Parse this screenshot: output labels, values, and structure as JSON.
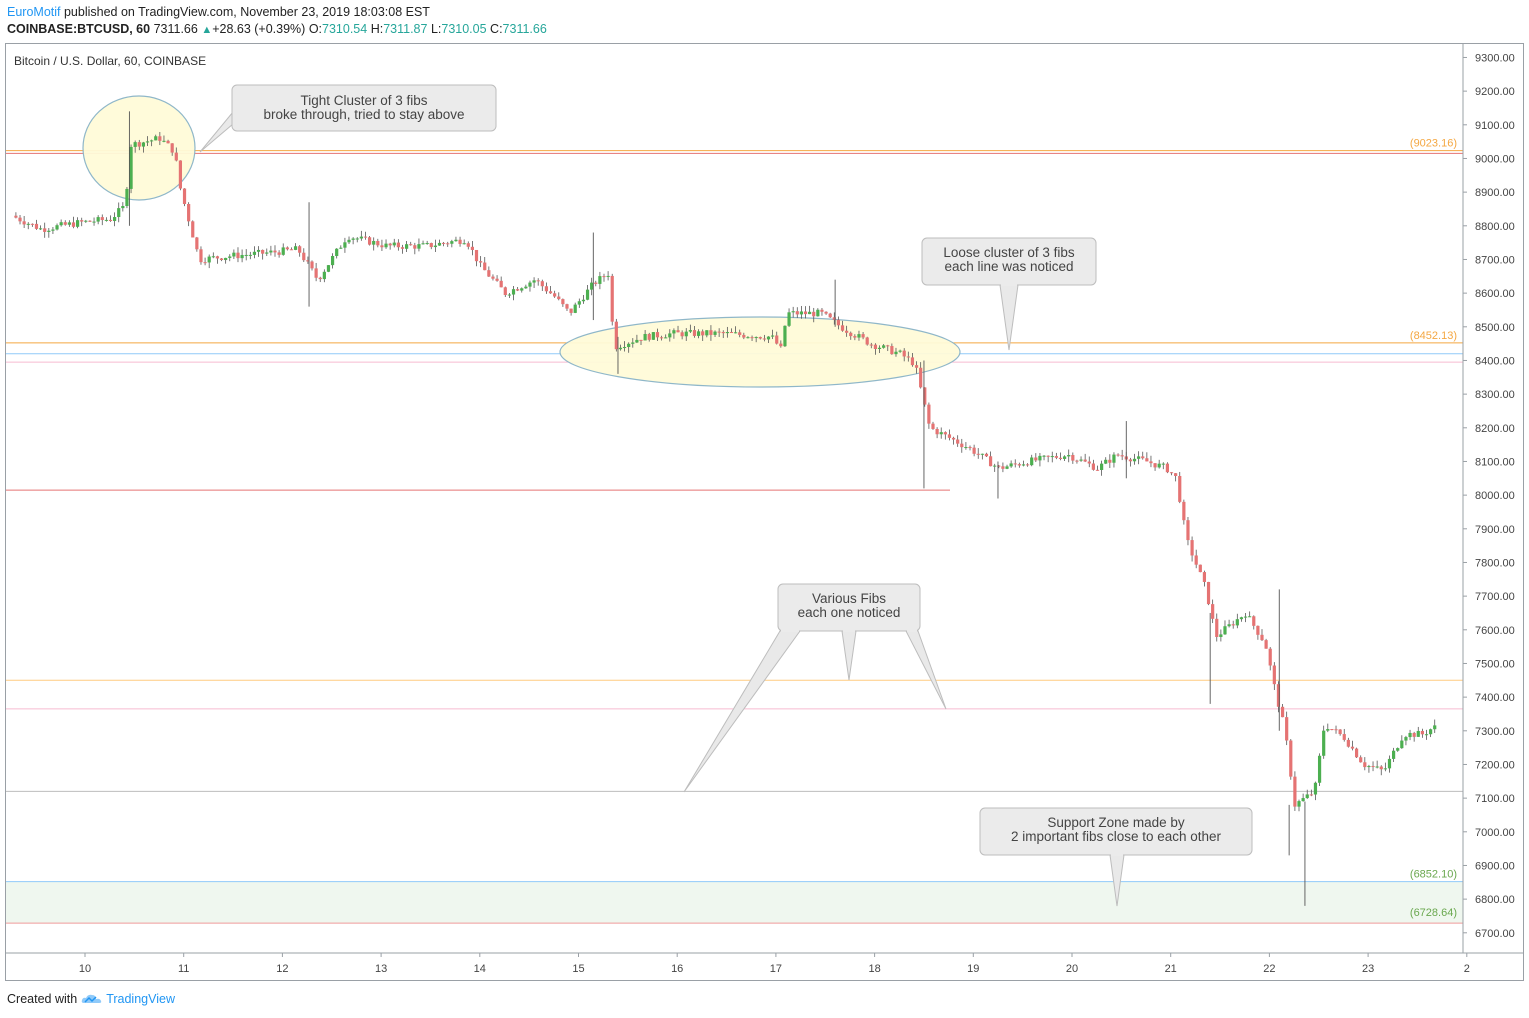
{
  "header": {
    "author": "EuroMotif",
    "published_text": " published on TradingView.com, November 23, 2019 18:03:08 EST",
    "symbol": "COINBASE:BTCUSD, 60",
    "last": "7311.66",
    "change": "+28.63 (+0.39%)",
    "o_label": "O:",
    "o_value": "7310.54",
    "h_label": "H:",
    "h_value": "7311.87",
    "l_label": "L:",
    "l_value": "7310.05",
    "c_label": "C:",
    "c_value": "7311.66"
  },
  "footer": {
    "created_with": "Created with",
    "brand": "TradingView"
  },
  "chart_data": {
    "type": "candlestick",
    "title": "Bitcoin / U.S. Dollar, 60, COINBASE",
    "ylim": [
      6640,
      9340
    ],
    "y_ticks": [
      "9300.00",
      "9200.00",
      "9100.00",
      "9000.00",
      "8900.00",
      "8800.00",
      "8700.00",
      "8600.00",
      "8500.00",
      "8400.00",
      "8300.00",
      "8200.00",
      "8100.00",
      "8000.00",
      "7900.00",
      "7800.00",
      "7700.00",
      "7600.00",
      "7500.00",
      "7400.00",
      "7300.00",
      "7200.00",
      "7100.00",
      "7000.00",
      "6900.00",
      "6800.00",
      "6700.00"
    ],
    "x_ticks": [
      "10",
      "11",
      "12",
      "13",
      "14",
      "15",
      "16",
      "17",
      "18",
      "19",
      "20",
      "21",
      "22",
      "23",
      "2"
    ],
    "price_path": [
      [
        9.3,
        8830
      ],
      [
        9.6,
        8790
      ],
      [
        10.0,
        8810
      ],
      [
        10.3,
        8820
      ],
      [
        10.45,
        8860
      ],
      [
        10.5,
        9040
      ],
      [
        10.8,
        9060
      ],
      [
        10.95,
        9020
      ],
      [
        11.0,
        8920
      ],
      [
        11.2,
        8700
      ],
      [
        11.5,
        8710
      ],
      [
        11.9,
        8720
      ],
      [
        12.2,
        8730
      ],
      [
        12.4,
        8640
      ],
      [
        12.7,
        8770
      ],
      [
        13.1,
        8740
      ],
      [
        13.5,
        8740
      ],
      [
        13.9,
        8760
      ],
      [
        14.05,
        8680
      ],
      [
        14.3,
        8600
      ],
      [
        14.6,
        8640
      ],
      [
        14.8,
        8590
      ],
      [
        14.95,
        8540
      ],
      [
        15.2,
        8630
      ],
      [
        15.35,
        8660
      ],
      [
        15.4,
        8440
      ],
      [
        15.7,
        8470
      ],
      [
        16.0,
        8480
      ],
      [
        16.5,
        8480
      ],
      [
        17.0,
        8470
      ],
      [
        17.1,
        8430
      ],
      [
        17.15,
        8540
      ],
      [
        17.5,
        8540
      ],
      [
        17.7,
        8500
      ],
      [
        18.0,
        8450
      ],
      [
        18.3,
        8420
      ],
      [
        18.45,
        8390
      ],
      [
        18.6,
        8200
      ],
      [
        18.8,
        8170
      ],
      [
        19.0,
        8140
      ],
      [
        19.3,
        8080
      ],
      [
        19.6,
        8100
      ],
      [
        20.0,
        8120
      ],
      [
        20.3,
        8080
      ],
      [
        20.5,
        8120
      ],
      [
        20.8,
        8100
      ],
      [
        21.0,
        8080
      ],
      [
        21.1,
        8050
      ],
      [
        21.2,
        7870
      ],
      [
        21.4,
        7720
      ],
      [
        21.5,
        7580
      ],
      [
        21.8,
        7650
      ],
      [
        22.0,
        7560
      ],
      [
        22.1,
        7420
      ],
      [
        22.2,
        7300
      ],
      [
        22.3,
        7080
      ],
      [
        22.5,
        7120
      ],
      [
        22.6,
        7320
      ],
      [
        22.8,
        7280
      ],
      [
        23.0,
        7200
      ],
      [
        23.2,
        7180
      ],
      [
        23.4,
        7290
      ],
      [
        23.6,
        7290
      ],
      [
        23.7,
        7310
      ]
    ],
    "annotations": [
      {
        "text": "Tight Cluster of 3 fibs\nbroke through, tried to stay above"
      },
      {
        "text": "Loose cluster of 3 fibs\neach line was noticed"
      },
      {
        "text": "Various Fibs\neach one noticed"
      },
      {
        "text": "Support Zone made by\n2 important fibs close to each other"
      }
    ],
    "horizontal_levels": [
      {
        "price": 9023.16,
        "label": "(9023.16)",
        "color": "#f4a742"
      },
      {
        "price": 9015,
        "label": "",
        "color": "#e57373"
      },
      {
        "price": 8452.13,
        "label": "(8452.13)",
        "color": "#f4a742"
      },
      {
        "price": 8420,
        "label": "",
        "color": "#90caf9"
      },
      {
        "price": 8395,
        "label": "",
        "color": "#f8bbd0"
      },
      {
        "price": 8015,
        "label": "",
        "color": "#e57373"
      },
      {
        "price": 7450,
        "label": "",
        "color": "#ffcc80"
      },
      {
        "price": 7365,
        "label": "",
        "color": "#f8bbd0"
      },
      {
        "price": 7120,
        "label": "",
        "color": "#bdbdbd"
      },
      {
        "price": 6852.1,
        "label": "(6852.10)",
        "color": "#90caf9"
      },
      {
        "price": 6728.64,
        "label": "(6728.64)",
        "color": "#ef9a9a"
      }
    ],
    "up_color": "#4caf50",
    "down_color": "#e57373",
    "grid": false
  }
}
